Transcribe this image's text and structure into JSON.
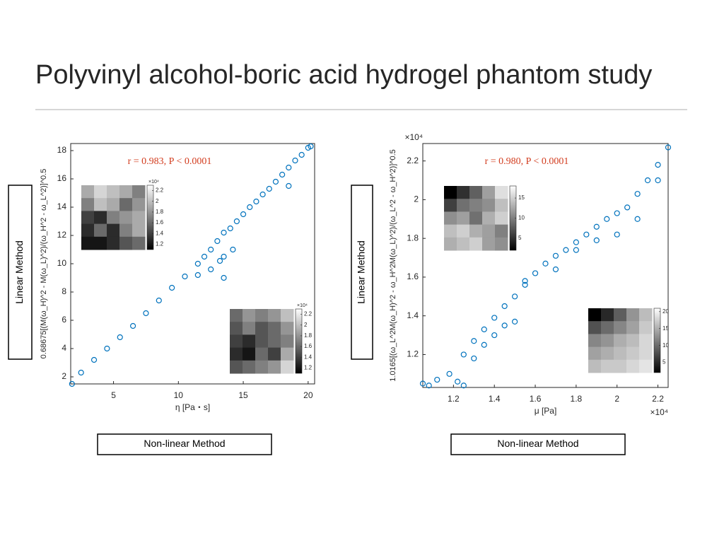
{
  "title": "Polyvinyl alcohol-boric acid hydrogel phantom study",
  "chart_data": [
    {
      "type": "scatter",
      "color": "#0072bd",
      "xlabel": "η [Pa・s]",
      "ylabel": "0.68675[(M(ω_H)^2 - M(ω_L)^2)/(ω_H^2 - ω_L^2)]^0.5",
      "annotation": "r = 0.983, P < 0.0001",
      "y_box_label": "Linear Method",
      "x_box_label": "Non-linear Method",
      "xlim": [
        1.7,
        20.5
      ],
      "ylim": [
        1.5,
        18.5
      ],
      "xticks": [
        5,
        10,
        15,
        20
      ],
      "yticks": [
        2,
        4,
        6,
        8,
        10,
        12,
        14,
        16,
        18
      ],
      "x": [
        1.8,
        2.5,
        3.5,
        4.5,
        5.5,
        6.5,
        7.5,
        8.5,
        9.5,
        10.5,
        11.5,
        12.0,
        12.5,
        13.0,
        13.5,
        13.5,
        13.5,
        14.0,
        14.5,
        15.0,
        15.5,
        16,
        16.5,
        17,
        17.5,
        18,
        18.5,
        19,
        19.5,
        20,
        20.2,
        11.5,
        12.5,
        13.2,
        18.5,
        14.2
      ],
      "values": [
        1.5,
        2.3,
        3.2,
        4.0,
        4.8,
        5.6,
        6.5,
        7.4,
        8.3,
        9.1,
        10.0,
        10.5,
        11.0,
        11.6,
        12.2,
        10.5,
        9.0,
        12.5,
        13.0,
        13.5,
        14.0,
        14.4,
        14.9,
        15.3,
        15.8,
        16.3,
        16.8,
        17.3,
        17.7,
        18.2,
        18.3,
        9.2,
        9.6,
        10.2,
        15.5,
        11.0
      ]
    },
    {
      "type": "heatmap",
      "clim": [
        1.1,
        2.3
      ],
      "cticks": [
        2.2,
        2,
        1.8,
        1.6,
        1.4,
        1.2
      ],
      "c_exponent": "×10⁴",
      "z": [
        [
          1.9,
          2.1,
          2.0,
          1.9,
          1.7
        ],
        [
          1.7,
          2.0,
          1.9,
          1.6,
          1.8
        ],
        [
          1.4,
          1.3,
          1.7,
          1.8,
          1.9
        ],
        [
          1.3,
          1.6,
          1.3,
          1.7,
          1.9
        ],
        [
          1.2,
          1.2,
          1.3,
          1.5,
          1.6
        ]
      ]
    },
    {
      "type": "heatmap",
      "clim": [
        1.1,
        2.3
      ],
      "cticks": [
        2.2,
        2,
        1.8,
        1.6,
        1.4,
        1.2
      ],
      "c_exponent": "×10⁴",
      "z": [
        [
          1.6,
          1.8,
          1.7,
          1.8,
          2.0
        ],
        [
          1.5,
          1.7,
          1.5,
          1.6,
          1.8
        ],
        [
          1.4,
          1.3,
          1.5,
          1.6,
          1.7
        ],
        [
          1.3,
          1.2,
          1.6,
          1.4,
          1.9
        ],
        [
          1.5,
          1.6,
          1.7,
          1.8,
          2.1
        ]
      ]
    },
    {
      "type": "scatter",
      "color": "#0072bd",
      "xlabel": "μ [Pa]",
      "ylabel": "1.0165[(ω_L^2M(ω_H)^2 - ω_H^2M(ω_L)^2)/(ω_L^2 - ω_H^2)]^0.5",
      "annotation": "r = 0.980, P < 0.0001",
      "y_box_label": "Linear Method",
      "x_box_label": "Non-linear Method",
      "x_exponent": "×10⁴",
      "y_exponent": "×10⁴",
      "xlim": [
        1.05,
        2.25
      ],
      "ylim": [
        1.03,
        2.29
      ],
      "xticks": [
        1.2,
        1.4,
        1.6,
        1.8,
        2,
        2.2
      ],
      "yticks": [
        1.2,
        1.4,
        1.6,
        1.8,
        2,
        2.2
      ],
      "x": [
        1.05,
        1.08,
        1.12,
        1.18,
        1.22,
        1.25,
        1.25,
        1.3,
        1.35,
        1.4,
        1.45,
        1.5,
        1.55,
        1.6,
        1.65,
        1.7,
        1.75,
        1.8,
        1.85,
        1.9,
        1.95,
        2.0,
        2.05,
        2.1,
        2.15,
        2.2,
        2.25,
        1.3,
        1.4,
        1.5,
        1.55,
        1.7,
        1.8,
        1.9,
        2.0,
        2.1,
        2.2,
        1.35,
        1.45
      ],
      "values": [
        1.05,
        1.04,
        1.07,
        1.1,
        1.06,
        1.04,
        1.2,
        1.27,
        1.33,
        1.39,
        1.45,
        1.5,
        1.56,
        1.62,
        1.67,
        1.71,
        1.74,
        1.78,
        1.82,
        1.86,
        1.9,
        1.93,
        1.96,
        2.03,
        2.1,
        2.18,
        2.27,
        1.18,
        1.3,
        1.37,
        1.58,
        1.64,
        1.74,
        1.79,
        1.82,
        1.9,
        2.1,
        1.25,
        1.35
      ]
    },
    {
      "type": "heatmap",
      "clim": [
        2,
        18
      ],
      "cticks": [
        15,
        10,
        5
      ],
      "z": [
        [
          2,
          5,
          8,
          12,
          16
        ],
        [
          6,
          9,
          10,
          11,
          14
        ],
        [
          11,
          12,
          9,
          13,
          15
        ],
        [
          14,
          15,
          13,
          12,
          10
        ],
        [
          13,
          14,
          15,
          12,
          11
        ]
      ]
    },
    {
      "type": "heatmap",
      "clim": [
        2,
        21
      ],
      "cticks": [
        20,
        15,
        10,
        5
      ],
      "z": [
        [
          2,
          5,
          9,
          13,
          16
        ],
        [
          8,
          10,
          12,
          14,
          17
        ],
        [
          12,
          13,
          15,
          16,
          18
        ],
        [
          14,
          15,
          16,
          17,
          18
        ],
        [
          16,
          17,
          17,
          18,
          19
        ]
      ]
    }
  ]
}
